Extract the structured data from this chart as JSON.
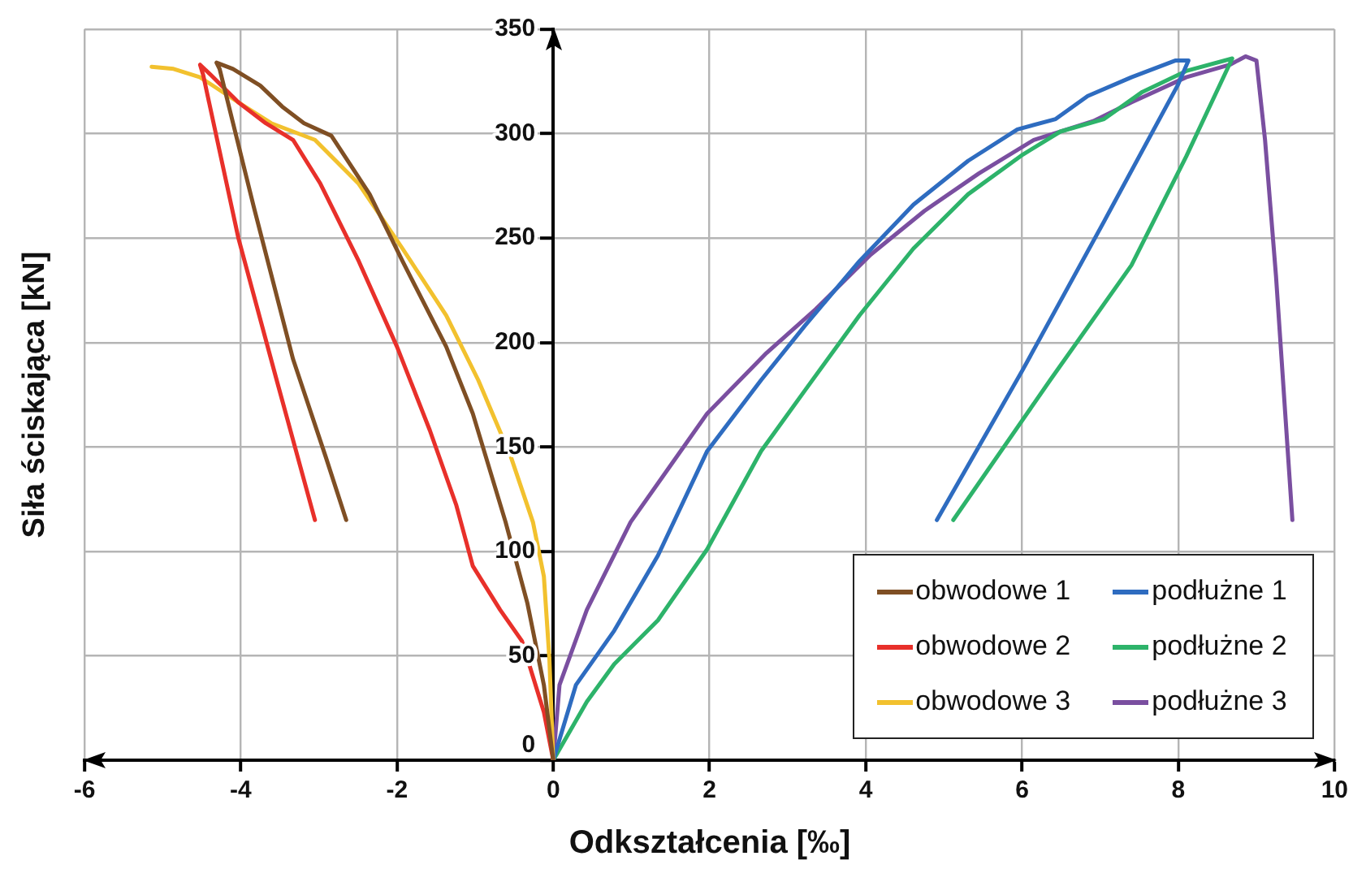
{
  "chart_data": {
    "type": "line",
    "xlabel": "Odkształcenia [‰]",
    "ylabel": "Siła ściskająca [kN]",
    "xlim": [
      -6,
      10
    ],
    "xticks": [
      -6,
      -4,
      -2,
      0,
      2,
      4,
      6,
      8,
      10
    ],
    "ylim": [
      0,
      350
    ],
    "yticks": [
      0,
      50,
      100,
      150,
      200,
      250,
      300,
      350
    ],
    "grid": true,
    "legend": "bottom right",
    "marker": "none",
    "line_style": "solid",
    "series": [
      {
        "name": "obwodowe 1",
        "color": "#7f4f24",
        "x": [
          0,
          -0.12,
          -0.33,
          -0.61,
          -1.03,
          -1.37,
          -1.93,
          -2.35,
          -2.84,
          -3.19,
          -3.47,
          -3.75,
          -4.1,
          -4.31,
          -4.27,
          -3.82,
          -3.33,
          -2.91,
          -2.65
        ],
        "values": [
          0,
          36,
          75,
          114,
          166,
          198,
          239,
          271,
          299,
          305,
          313,
          323,
          331,
          334,
          331,
          263,
          192,
          145,
          115
        ]
      },
      {
        "name": "obwodowe 2",
        "color": "#e8302a",
        "x": [
          0,
          -0.12,
          -0.4,
          -0.68,
          -1.03,
          -1.24,
          -1.58,
          -2.0,
          -2.49,
          -2.98,
          -3.33,
          -3.68,
          -4.03,
          -4.38,
          -4.52,
          -4.48,
          -4.03,
          -3.54,
          -3.05
        ],
        "values": [
          0,
          23,
          57,
          72,
          93,
          122,
          158,
          198,
          239,
          276,
          297,
          305,
          315,
          328,
          333,
          328,
          250,
          182,
          115
        ]
      },
      {
        "name": "obwodowe 3",
        "color": "#f2c12e",
        "x": [
          0,
          -0.05,
          -0.12,
          -0.26,
          -0.54,
          -0.96,
          -1.37,
          -1.93,
          -2.49,
          -3.05,
          -3.61,
          -4.03,
          -4.52,
          -4.86,
          -5.14
        ],
        "values": [
          0,
          49,
          88,
          114,
          145,
          182,
          213,
          245,
          276,
          297,
          305,
          315,
          327,
          331,
          332
        ]
      },
      {
        "name": "podłużne 1",
        "color": "#2e6cc0",
        "x": [
          0,
          0.29,
          0.78,
          1.34,
          1.97,
          2.66,
          3.22,
          3.92,
          4.61,
          5.31,
          5.94,
          6.43,
          6.84,
          7.4,
          7.96,
          8.13,
          7.99,
          7.05,
          6.01,
          4.91
        ],
        "values": [
          0,
          36,
          62,
          98,
          148,
          182,
          208,
          239,
          266,
          287,
          302,
          307,
          318,
          327,
          335,
          335,
          323,
          258,
          187,
          115
        ]
      },
      {
        "name": "podłużne 2",
        "color": "#2db36a",
        "x": [
          0,
          0.43,
          0.78,
          1.34,
          1.97,
          2.66,
          3.22,
          3.92,
          4.61,
          5.31,
          6.01,
          6.49,
          7.05,
          7.54,
          8.1,
          8.69,
          8.1,
          7.4,
          6.36,
          5.12
        ],
        "values": [
          0,
          28,
          46,
          67,
          101,
          148,
          177,
          213,
          245,
          271,
          290,
          301,
          307,
          320,
          330,
          336,
          289,
          237,
          182,
          115
        ]
      },
      {
        "name": "podłużne 3",
        "color": "#7a4fa0",
        "x": [
          0,
          0.08,
          0.43,
          0.99,
          1.48,
          1.97,
          2.73,
          3.36,
          4.06,
          4.75,
          5.45,
          6.15,
          6.91,
          7.4,
          8.1,
          8.66,
          8.86,
          9.0,
          9.11,
          9.25,
          9.46
        ],
        "values": [
          0,
          36,
          72,
          114,
          140,
          166,
          195,
          216,
          242,
          263,
          281,
          297,
          306,
          315,
          327,
          333,
          337,
          335,
          297,
          232,
          115
        ]
      }
    ]
  }
}
